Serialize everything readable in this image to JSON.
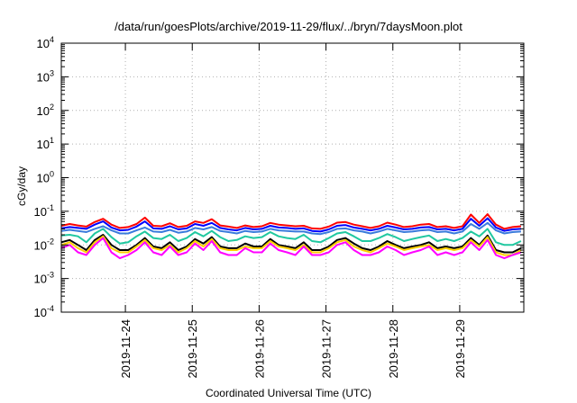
{
  "chart_data": {
    "type": "line",
    "title": "/data/run/goesPlots/archive/2019-11-29/flux/../bryn/7daysMoon.plot",
    "xlabel": "Coordinated Universal Time (UTC)",
    "ylabel": "cGy/day",
    "y_scale": "log",
    "ylim": [
      0.0001,
      10000
    ],
    "y_ticks": [
      {
        "value": 0.0001,
        "base": "10",
        "exp": "-4"
      },
      {
        "value": 0.001,
        "base": "10",
        "exp": "-3"
      },
      {
        "value": 0.01,
        "base": "10",
        "exp": "-2"
      },
      {
        "value": 0.1,
        "base": "10",
        "exp": "-1"
      },
      {
        "value": 1,
        "base": "10",
        "exp": "0"
      },
      {
        "value": 10,
        "base": "10",
        "exp": "1"
      },
      {
        "value": 100,
        "base": "10",
        "exp": "2"
      },
      {
        "value": 1000,
        "base": "10",
        "exp": "3"
      },
      {
        "value": 10000,
        "base": "10",
        "exp": "4"
      }
    ],
    "xlim": [
      "2019-11-23 01:00",
      "2019-11-29 23:00"
    ],
    "x_ticks": [
      "2019-11-24",
      "2019-11-25",
      "2019-11-26",
      "2019-11-27",
      "2019-11-28",
      "2019-11-29"
    ],
    "grid": true,
    "legend": "none",
    "x": [
      "2019-11-23 01:00",
      "2019-11-23 04:00",
      "2019-11-23 07:00",
      "2019-11-23 10:00",
      "2019-11-23 13:00",
      "2019-11-23 16:00",
      "2019-11-23 19:00",
      "2019-11-23 22:00",
      "2019-11-24 01:00",
      "2019-11-24 04:00",
      "2019-11-24 07:00",
      "2019-11-24 10:00",
      "2019-11-24 13:00",
      "2019-11-24 16:00",
      "2019-11-24 19:00",
      "2019-11-24 22:00",
      "2019-11-25 01:00",
      "2019-11-25 04:00",
      "2019-11-25 07:00",
      "2019-11-25 10:00",
      "2019-11-25 13:00",
      "2019-11-25 16:00",
      "2019-11-25 19:00",
      "2019-11-25 22:00",
      "2019-11-26 01:00",
      "2019-11-26 04:00",
      "2019-11-26 07:00",
      "2019-11-26 10:00",
      "2019-11-26 13:00",
      "2019-11-26 16:00",
      "2019-11-26 19:00",
      "2019-11-26 22:00",
      "2019-11-27 01:00",
      "2019-11-27 04:00",
      "2019-11-27 07:00",
      "2019-11-27 10:00",
      "2019-11-27 13:00",
      "2019-11-27 16:00",
      "2019-11-27 19:00",
      "2019-11-27 22:00",
      "2019-11-28 01:00",
      "2019-11-28 04:00",
      "2019-11-28 07:00",
      "2019-11-28 10:00",
      "2019-11-28 13:00",
      "2019-11-28 16:00",
      "2019-11-28 19:00",
      "2019-11-28 22:00",
      "2019-11-29 01:00",
      "2019-11-29 04:00",
      "2019-11-29 07:00",
      "2019-11-29 10:00",
      "2019-11-29 13:00",
      "2019-11-29 16:00",
      "2019-11-29 19:00",
      "2019-11-29 22:00"
    ],
    "series": [
      {
        "color": "#ff0000",
        "values": [
          0.037,
          0.042,
          0.038,
          0.035,
          0.048,
          0.06,
          0.04,
          0.032,
          0.034,
          0.042,
          0.065,
          0.037,
          0.036,
          0.044,
          0.034,
          0.037,
          0.05,
          0.045,
          0.058,
          0.038,
          0.035,
          0.032,
          0.038,
          0.034,
          0.036,
          0.045,
          0.04,
          0.038,
          0.036,
          0.037,
          0.031,
          0.03,
          0.035,
          0.046,
          0.048,
          0.04,
          0.036,
          0.032,
          0.036,
          0.046,
          0.04,
          0.034,
          0.036,
          0.04,
          0.042,
          0.034,
          0.036,
          0.032,
          0.036,
          0.08,
          0.045,
          0.082,
          0.04,
          0.03,
          0.034,
          0.036
        ]
      },
      {
        "color": "#0000ff",
        "values": [
          0.031,
          0.034,
          0.032,
          0.03,
          0.04,
          0.05,
          0.033,
          0.027,
          0.028,
          0.035,
          0.05,
          0.031,
          0.03,
          0.036,
          0.029,
          0.031,
          0.042,
          0.037,
          0.045,
          0.032,
          0.029,
          0.027,
          0.032,
          0.029,
          0.03,
          0.037,
          0.033,
          0.032,
          0.03,
          0.031,
          0.026,
          0.025,
          0.029,
          0.037,
          0.039,
          0.033,
          0.03,
          0.027,
          0.03,
          0.037,
          0.033,
          0.029,
          0.03,
          0.033,
          0.034,
          0.029,
          0.03,
          0.027,
          0.03,
          0.06,
          0.037,
          0.062,
          0.033,
          0.026,
          0.029,
          0.03
        ]
      },
      {
        "color": "#3a7bdc",
        "values": [
          0.026,
          0.028,
          0.026,
          0.024,
          0.03,
          0.036,
          0.027,
          0.022,
          0.022,
          0.027,
          0.033,
          0.025,
          0.024,
          0.028,
          0.023,
          0.025,
          0.032,
          0.029,
          0.034,
          0.026,
          0.024,
          0.022,
          0.026,
          0.024,
          0.025,
          0.03,
          0.027,
          0.026,
          0.025,
          0.025,
          0.022,
          0.021,
          0.024,
          0.03,
          0.031,
          0.027,
          0.025,
          0.022,
          0.025,
          0.03,
          0.027,
          0.024,
          0.025,
          0.027,
          0.028,
          0.024,
          0.025,
          0.022,
          0.025,
          0.042,
          0.03,
          0.045,
          0.027,
          0.022,
          0.024,
          0.025
        ]
      },
      {
        "color": "#20c8a0",
        "values": [
          0.019,
          0.02,
          0.018,
          0.012,
          0.022,
          0.03,
          0.017,
          0.011,
          0.012,
          0.018,
          0.025,
          0.016,
          0.015,
          0.02,
          0.013,
          0.016,
          0.024,
          0.018,
          0.026,
          0.017,
          0.013,
          0.014,
          0.018,
          0.016,
          0.017,
          0.024,
          0.018,
          0.016,
          0.015,
          0.02,
          0.013,
          0.012,
          0.016,
          0.022,
          0.024,
          0.018,
          0.013,
          0.013,
          0.016,
          0.021,
          0.017,
          0.013,
          0.015,
          0.017,
          0.019,
          0.013,
          0.015,
          0.013,
          0.016,
          0.025,
          0.018,
          0.03,
          0.012,
          0.01,
          0.01,
          0.013
        ]
      },
      {
        "color": "#000000",
        "values": [
          0.012,
          0.014,
          0.01,
          0.007,
          0.014,
          0.02,
          0.01,
          0.007,
          0.007,
          0.01,
          0.016,
          0.009,
          0.008,
          0.012,
          0.007,
          0.009,
          0.015,
          0.011,
          0.017,
          0.009,
          0.008,
          0.008,
          0.011,
          0.009,
          0.009,
          0.015,
          0.01,
          0.009,
          0.008,
          0.012,
          0.007,
          0.007,
          0.009,
          0.014,
          0.016,
          0.011,
          0.008,
          0.007,
          0.009,
          0.013,
          0.01,
          0.008,
          0.009,
          0.01,
          0.012,
          0.008,
          0.009,
          0.008,
          0.009,
          0.016,
          0.01,
          0.019,
          0.007,
          0.006,
          0.006,
          0.008
        ]
      },
      {
        "color": "#ffd000",
        "values": [
          0.01,
          0.012,
          0.008,
          0.006,
          0.012,
          0.018,
          0.008,
          0.006,
          0.006,
          0.009,
          0.014,
          0.008,
          0.007,
          0.01,
          0.006,
          0.008,
          0.013,
          0.009,
          0.015,
          0.008,
          0.007,
          0.007,
          0.009,
          0.008,
          0.008,
          0.013,
          0.009,
          0.008,
          0.007,
          0.01,
          0.006,
          0.006,
          0.008,
          0.012,
          0.014,
          0.009,
          0.007,
          0.006,
          0.008,
          0.011,
          0.009,
          0.007,
          0.008,
          0.009,
          0.01,
          0.007,
          0.008,
          0.007,
          0.008,
          0.014,
          0.009,
          0.017,
          0.006,
          0.005,
          0.005,
          0.007
        ]
      },
      {
        "color": "#ff00ff",
        "values": [
          0.008,
          0.01,
          0.006,
          0.005,
          0.01,
          0.016,
          0.006,
          0.004,
          0.005,
          0.007,
          0.012,
          0.006,
          0.005,
          0.009,
          0.005,
          0.006,
          0.011,
          0.007,
          0.013,
          0.006,
          0.005,
          0.005,
          0.008,
          0.006,
          0.006,
          0.011,
          0.007,
          0.006,
          0.005,
          0.009,
          0.005,
          0.005,
          0.006,
          0.01,
          0.012,
          0.007,
          0.005,
          0.005,
          0.006,
          0.009,
          0.007,
          0.005,
          0.006,
          0.007,
          0.009,
          0.005,
          0.006,
          0.005,
          0.006,
          0.012,
          0.007,
          0.014,
          0.005,
          0.004,
          0.005,
          0.006
        ]
      }
    ]
  }
}
